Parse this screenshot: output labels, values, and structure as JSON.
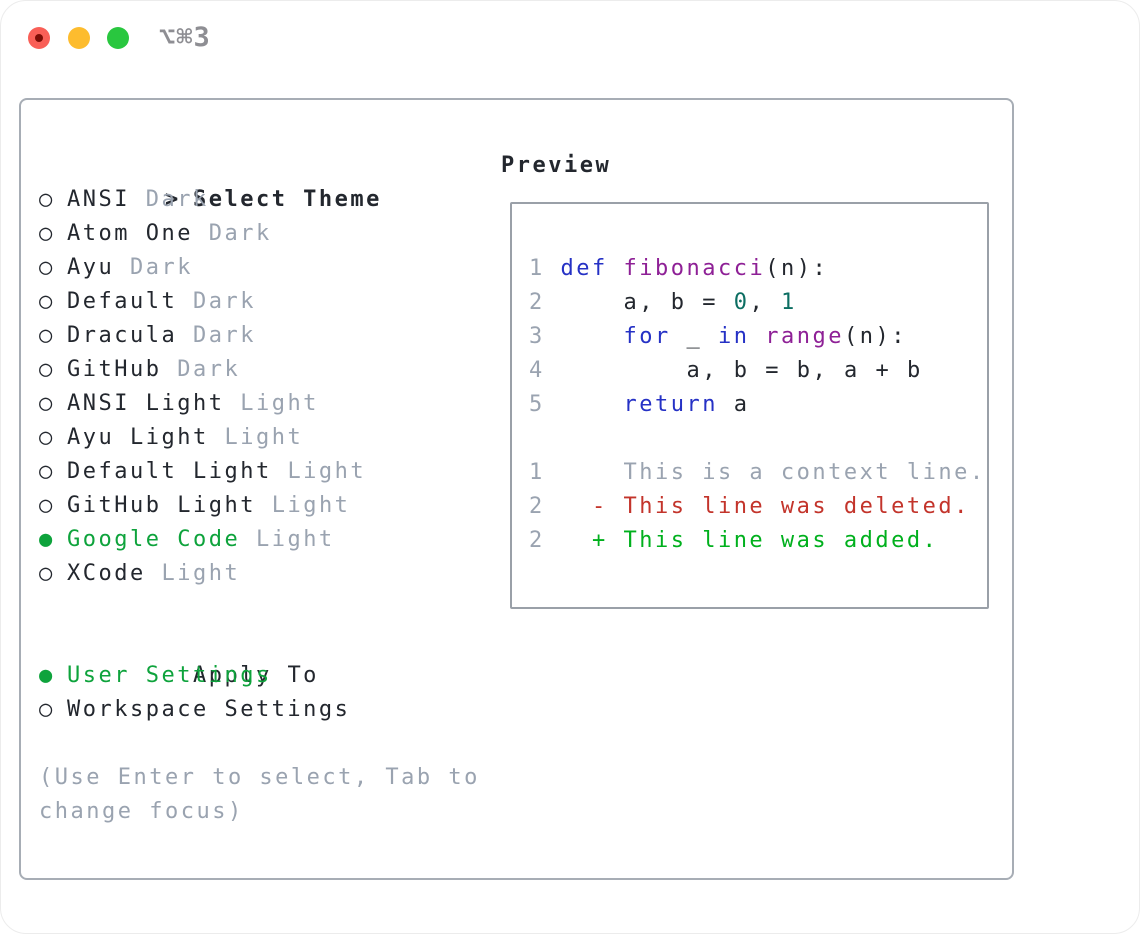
{
  "window": {
    "title": "⌥⌘3",
    "traffic_lights": [
      "close",
      "minimize",
      "zoom"
    ]
  },
  "colors": {
    "text": "#23272e",
    "muted": "#9aa3b0",
    "green": "#0ea33c",
    "added_green": "#00b01d",
    "deleted_red": "#c3342b",
    "keyword_blue": "#2531c5",
    "function_purple": "#8e2096",
    "number_teal": "#0c6e62",
    "panel_border": "#a7adb5",
    "preview_border": "#9aa0a8",
    "title_gray": "#8e8e93"
  },
  "theme_panel": {
    "cursor": ">",
    "header": "Select Theme",
    "markers": {
      "selected": "●",
      "unselected": "○"
    },
    "items": [
      {
        "name": "ANSI",
        "variant": "Dark",
        "selected": false
      },
      {
        "name": "Atom One",
        "variant": "Dark",
        "selected": false
      },
      {
        "name": "Ayu",
        "variant": "Dark",
        "selected": false
      },
      {
        "name": "Default",
        "variant": "Dark",
        "selected": false
      },
      {
        "name": "Dracula",
        "variant": "Dark",
        "selected": false
      },
      {
        "name": "GitHub",
        "variant": "Dark",
        "selected": false
      },
      {
        "name": "ANSI Light",
        "variant": "Light",
        "selected": false
      },
      {
        "name": "Ayu Light",
        "variant": "Light",
        "selected": false
      },
      {
        "name": "Default Light",
        "variant": "Light",
        "selected": false
      },
      {
        "name": "GitHub Light",
        "variant": "Light",
        "selected": false
      },
      {
        "name": "Google Code",
        "variant": "Light",
        "selected": true
      },
      {
        "name": "XCode",
        "variant": "Light",
        "selected": false
      }
    ],
    "apply_to": {
      "header": "Apply To",
      "options": [
        {
          "label": "User Settings",
          "selected": true
        },
        {
          "label": "Workspace Settings",
          "selected": false
        }
      ]
    },
    "help_lines": [
      "(Use Enter to select, Tab to",
      "change focus)"
    ]
  },
  "preview": {
    "header": "Preview",
    "lines": [
      {
        "tokens": [
          [
            "ln",
            "1"
          ],
          [
            "pn",
            " "
          ],
          [
            "kw",
            "def"
          ],
          [
            "pn",
            " "
          ],
          [
            "fn",
            "fibonacci"
          ],
          [
            "pn",
            "("
          ],
          [
            "var",
            "n"
          ],
          [
            "pn",
            "):"
          ]
        ]
      },
      {
        "tokens": [
          [
            "ln",
            "2"
          ],
          [
            "pn",
            "     "
          ],
          [
            "var",
            "a"
          ],
          [
            "pn",
            ", "
          ],
          [
            "var",
            "b"
          ],
          [
            "pn",
            " = "
          ],
          [
            "num",
            "0"
          ],
          [
            "pn",
            ", "
          ],
          [
            "num",
            "1"
          ]
        ]
      },
      {
        "tokens": [
          [
            "ln",
            "3"
          ],
          [
            "pn",
            "     "
          ],
          [
            "kw",
            "for"
          ],
          [
            "pn",
            " "
          ],
          [
            "var",
            "_"
          ],
          [
            "pn",
            " "
          ],
          [
            "kw",
            "in"
          ],
          [
            "pn",
            " "
          ],
          [
            "fn",
            "range"
          ],
          [
            "pn",
            "("
          ],
          [
            "var",
            "n"
          ],
          [
            "pn",
            "):"
          ]
        ]
      },
      {
        "tokens": [
          [
            "ln",
            "4"
          ],
          [
            "pn",
            "         "
          ],
          [
            "var",
            "a"
          ],
          [
            "pn",
            ", "
          ],
          [
            "var",
            "b"
          ],
          [
            "pn",
            " = "
          ],
          [
            "var",
            "b"
          ],
          [
            "pn",
            ", "
          ],
          [
            "var",
            "a"
          ],
          [
            "pn",
            " + "
          ],
          [
            "var",
            "b"
          ]
        ]
      },
      {
        "tokens": [
          [
            "ln",
            "5"
          ],
          [
            "pn",
            "     "
          ],
          [
            "kw",
            "return"
          ],
          [
            "pn",
            " "
          ],
          [
            "var",
            "a"
          ]
        ]
      },
      {
        "tokens": []
      },
      {
        "tokens": [
          [
            "ln",
            "1"
          ],
          [
            "ctx",
            "     This is a context line."
          ]
        ]
      },
      {
        "tokens": [
          [
            "ln",
            "2"
          ],
          [
            "del",
            "   - This line was deleted."
          ]
        ]
      },
      {
        "tokens": [
          [
            "ln",
            "2"
          ],
          [
            "add",
            "   + This line was added."
          ]
        ]
      }
    ]
  }
}
